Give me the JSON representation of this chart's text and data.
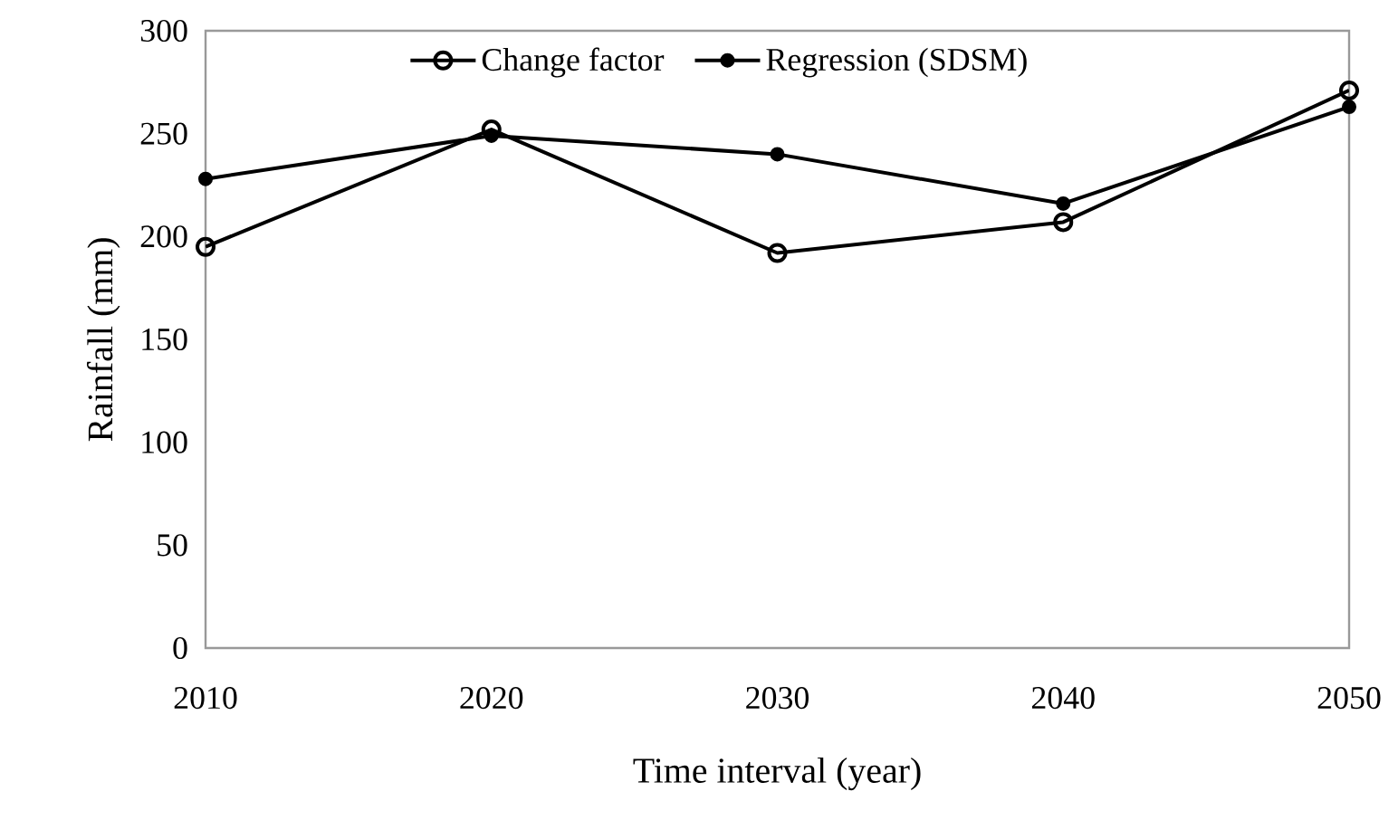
{
  "chart_data": {
    "type": "line",
    "xlabel": "Time interval (year)",
    "ylabel": "Rainfall (mm)",
    "x": [
      2010,
      2020,
      2030,
      2040,
      2050
    ],
    "series": [
      {
        "name": "Change factor",
        "color": "#000000",
        "marker": "circle",
        "values": [
          195,
          252,
          192,
          207,
          271
        ]
      },
      {
        "name": "Regression (SDSM)",
        "color": "#000000",
        "marker": "circle",
        "values": [
          228,
          249,
          240,
          216,
          263
        ]
      }
    ],
    "xlim": [
      2010,
      2050
    ],
    "xticks": [
      2010,
      2020,
      2030,
      2040,
      2050
    ],
    "ylim": [
      0,
      300
    ],
    "yticks": [
      0,
      50,
      100,
      150,
      200,
      250,
      300
    ],
    "grid": false,
    "legend": "top",
    "line_style": "solid"
  }
}
